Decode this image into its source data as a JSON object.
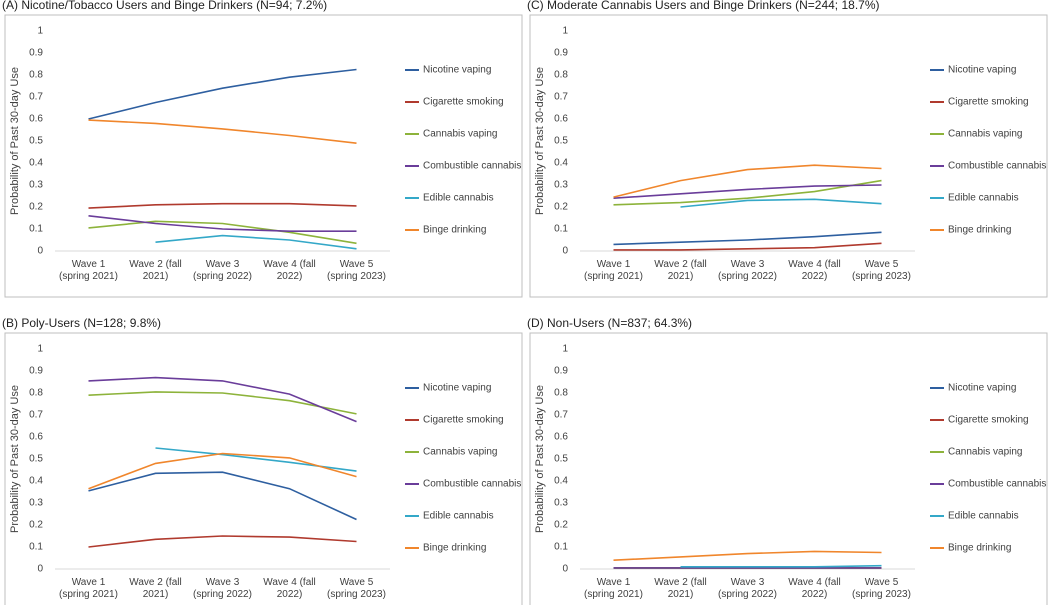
{
  "chart_data": [
    {
      "type": "line",
      "title": "(A) Nicotine/Tobacco Users and Binge Drinkers (N=94; 7.2%)",
      "y_label": "Probability of Past 30-day Use",
      "categories": [
        "Wave 1 (spring 2021)",
        "Wave 2 (fall 2021)",
        "Wave 3 (spring 2022)",
        "Wave 4 (fall 2022)",
        "Wave 5 (spring 2023)"
      ],
      "ylim": [
        0,
        1
      ],
      "yticks": [
        0,
        0.1,
        0.2,
        0.3,
        0.4,
        0.5,
        0.6,
        0.7,
        0.8,
        0.9,
        1
      ],
      "grid": false,
      "legend": "right",
      "series": [
        {
          "name": "Nicotine vaping",
          "color": "#2e5fa0",
          "values": [
            0.6,
            0.675,
            0.74,
            0.79,
            0.825
          ]
        },
        {
          "name": "Cigarette smoking",
          "color": "#b03a2e",
          "values": [
            0.195,
            0.21,
            0.215,
            0.215,
            0.205
          ]
        },
        {
          "name": "Cannabis vaping",
          "color": "#8db33b",
          "values": [
            0.105,
            0.135,
            0.125,
            0.085,
            0.035
          ]
        },
        {
          "name": "Combustible cannabis",
          "color": "#6a3d9a",
          "values": [
            0.16,
            0.125,
            0.1,
            0.09,
            0.09
          ]
        },
        {
          "name": "Edible cannabis",
          "color": "#34a8c8",
          "values": [
            null,
            0.04,
            0.07,
            0.05,
            0.01
          ]
        },
        {
          "name": "Binge drinking",
          "color": "#f0862c",
          "values": [
            0.595,
            0.58,
            0.555,
            0.525,
            0.49
          ]
        }
      ]
    },
    {
      "type": "line",
      "title": "(C) Moderate Cannabis Users and Binge Drinkers (N=244; 18.7%)",
      "y_label": "Probability of Past 30-day Use",
      "categories": [
        "Wave 1 (spring 2021)",
        "Wave 2 (fall 2021)",
        "Wave 3 (spring 2022)",
        "Wave 4 (fall 2022)",
        "Wave 5 (spring 2023)"
      ],
      "ylim": [
        0,
        1
      ],
      "yticks": [
        0,
        0.1,
        0.2,
        0.3,
        0.4,
        0.5,
        0.6,
        0.7,
        0.8,
        0.9,
        1
      ],
      "grid": false,
      "legend": "right",
      "series": [
        {
          "name": "Nicotine vaping",
          "color": "#2e5fa0",
          "values": [
            0.03,
            0.04,
            0.05,
            0.065,
            0.085
          ]
        },
        {
          "name": "Cigarette smoking",
          "color": "#b03a2e",
          "values": [
            0.005,
            0.005,
            0.01,
            0.015,
            0.035
          ]
        },
        {
          "name": "Cannabis vaping",
          "color": "#8db33b",
          "values": [
            0.21,
            0.22,
            0.24,
            0.27,
            0.32
          ]
        },
        {
          "name": "Combustible cannabis",
          "color": "#6a3d9a",
          "values": [
            0.24,
            0.26,
            0.28,
            0.295,
            0.3
          ]
        },
        {
          "name": "Edible cannabis",
          "color": "#34a8c8",
          "values": [
            null,
            0.2,
            0.23,
            0.235,
            0.215
          ]
        },
        {
          "name": "Binge drinking",
          "color": "#f0862c",
          "values": [
            0.245,
            0.32,
            0.37,
            0.39,
            0.375
          ]
        }
      ]
    },
    {
      "type": "line",
      "title": "(B) Poly-Users (N=128; 9.8%)",
      "y_label": "Probability of Past 30-day Use",
      "categories": [
        "Wave 1 (spring 2021)",
        "Wave 2 (fall 2021)",
        "Wave 3 (spring 2022)",
        "Wave 4 (fall 2022)",
        "Wave 5 (spring 2023)"
      ],
      "ylim": [
        0,
        1
      ],
      "yticks": [
        0,
        0.1,
        0.2,
        0.3,
        0.4,
        0.5,
        0.6,
        0.7,
        0.8,
        0.9,
        1
      ],
      "grid": false,
      "legend": "right",
      "series": [
        {
          "name": "Nicotine vaping",
          "color": "#2e5fa0",
          "values": [
            0.355,
            0.435,
            0.44,
            0.365,
            0.225
          ]
        },
        {
          "name": "Cigarette smoking",
          "color": "#b03a2e",
          "values": [
            0.1,
            0.135,
            0.15,
            0.145,
            0.125
          ]
        },
        {
          "name": "Cannabis vaping",
          "color": "#8db33b",
          "values": [
            0.79,
            0.805,
            0.8,
            0.765,
            0.705
          ]
        },
        {
          "name": "Combustible cannabis",
          "color": "#6a3d9a",
          "values": [
            0.855,
            0.87,
            0.855,
            0.795,
            0.67
          ]
        },
        {
          "name": "Edible cannabis",
          "color": "#34a8c8",
          "values": [
            null,
            0.55,
            0.52,
            0.485,
            0.445
          ]
        },
        {
          "name": "Binge drinking",
          "color": "#f0862c",
          "values": [
            0.365,
            0.48,
            0.525,
            0.505,
            0.42
          ]
        }
      ]
    },
    {
      "type": "line",
      "title": "(D) Non-Users (N=837; 64.3%)",
      "y_label": "Probability of Past 30-day Use",
      "categories": [
        "Wave 1 (spring 2021)",
        "Wave 2 (fall 2021)",
        "Wave 3 (spring 2022)",
        "Wave 4 (fall 2022)",
        "Wave 5 (spring 2023)"
      ],
      "ylim": [
        0,
        1
      ],
      "yticks": [
        0,
        0.1,
        0.2,
        0.3,
        0.4,
        0.5,
        0.6,
        0.7,
        0.8,
        0.9,
        1
      ],
      "grid": false,
      "legend": "right",
      "series": [
        {
          "name": "Nicotine vaping",
          "color": "#2e5fa0",
          "values": [
            0.005,
            0.005,
            0.005,
            0.005,
            0.005
          ]
        },
        {
          "name": "Cigarette smoking",
          "color": "#b03a2e",
          "values": [
            0.005,
            0.005,
            0.005,
            0.005,
            0.005
          ]
        },
        {
          "name": "Cannabis vaping",
          "color": "#8db33b",
          "values": [
            0.005,
            0.005,
            0.005,
            0.005,
            0.005
          ]
        },
        {
          "name": "Combustible cannabis",
          "color": "#6a3d9a",
          "values": [
            0.005,
            0.005,
            0.005,
            0.005,
            0.005
          ]
        },
        {
          "name": "Edible cannabis",
          "color": "#34a8c8",
          "values": [
            null,
            0.01,
            0.01,
            0.01,
            0.015
          ]
        },
        {
          "name": "Binge drinking",
          "color": "#f0862c",
          "values": [
            0.04,
            0.055,
            0.07,
            0.08,
            0.075
          ]
        }
      ]
    }
  ]
}
